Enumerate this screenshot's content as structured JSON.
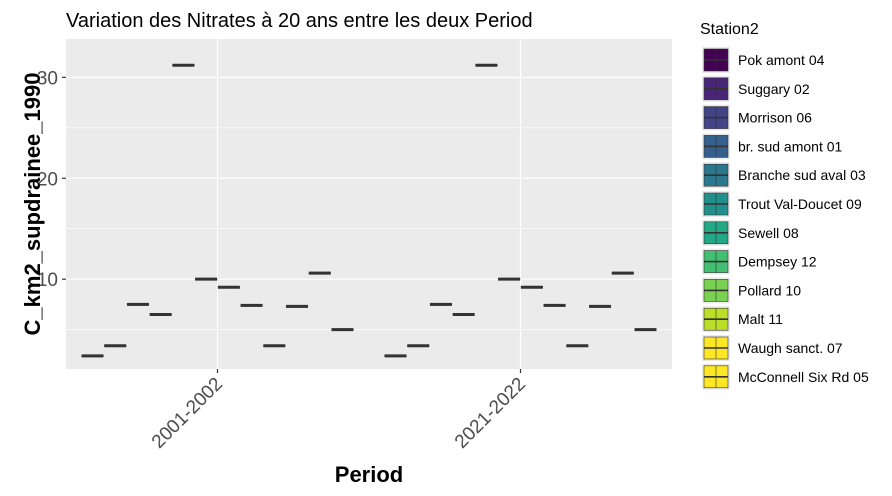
{
  "chart_data": {
    "type": "boxplot",
    "title": "Variation  des Nitrates à 20 ans entre les deux Period",
    "xlabel": "Period",
    "ylabel": "C_km2_supdrainee_1990",
    "categories": [
      "2001-2002",
      "2021-2022"
    ],
    "ylim": [
      1.1,
      33.8
    ],
    "yticks": [
      10,
      20,
      30
    ],
    "grid": true,
    "legend": {
      "title": "Station2",
      "position": "right"
    },
    "series": [
      {
        "name": "Pok amont 04",
        "color": "#440154",
        "values": [
          2.4,
          2.4
        ]
      },
      {
        "name": "Suggary 02",
        "color": "#482576",
        "values": [
          3.4,
          3.4
        ]
      },
      {
        "name": "Morrison 06",
        "color": "#414487",
        "values": [
          7.5,
          7.5
        ]
      },
      {
        "name": "br. sud amont 01",
        "color": "#35608D",
        "values": [
          6.5,
          6.5
        ]
      },
      {
        "name": "Branche sud aval 03",
        "color": "#2A788E",
        "values": [
          31.2,
          31.2
        ]
      },
      {
        "name": "Trout Val-Doucet 09",
        "color": "#21908C",
        "values": [
          10.0,
          10.0
        ]
      },
      {
        "name": "Sewell 08",
        "color": "#22A884",
        "values": [
          9.2,
          9.2
        ]
      },
      {
        "name": "Dempsey 12",
        "color": "#43BF71",
        "values": [
          7.4,
          7.4
        ]
      },
      {
        "name": "Pollard 10",
        "color": "#7AD151",
        "values": [
          3.4,
          3.4
        ]
      },
      {
        "name": "Malt 11",
        "color": "#BBDF27",
        "values": [
          7.3,
          7.3
        ]
      },
      {
        "name": "Waugh sanct. 07",
        "color": "#FDE725",
        "values": [
          10.6,
          10.6
        ]
      },
      {
        "name": "McConnell Six Rd 05",
        "color": "#FDE725",
        "values": [
          5.0,
          5.0
        ]
      }
    ]
  }
}
